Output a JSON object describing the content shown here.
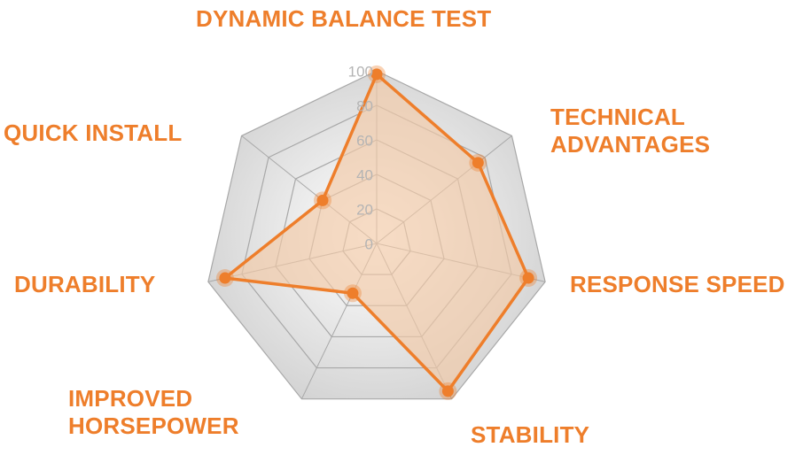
{
  "chart_data": {
    "type": "radar",
    "title": "",
    "categories": [
      "DYNAMIC BALANCE TEST",
      "TECHNICAL\nADVANTAGES",
      "RESPONSE SPEED",
      "STABILITY",
      "IMPROVED\nHORSEPOWER",
      "DURABILITY",
      "QUICK INSTALL"
    ],
    "series": [
      {
        "values": [
          98,
          75,
          90,
          95,
          32,
          90,
          40
        ],
        "color": "#ee7e2b",
        "fill": "#f3c9a6"
      }
    ],
    "radial_ticks": [
      "0",
      "20",
      "40",
      "60",
      "80",
      "100"
    ],
    "rlim": [
      0,
      100
    ],
    "grid": true,
    "grid_color": "#a8a8a8",
    "label_color": "#ee7e2b",
    "tick_color": "#b4b4b4"
  }
}
